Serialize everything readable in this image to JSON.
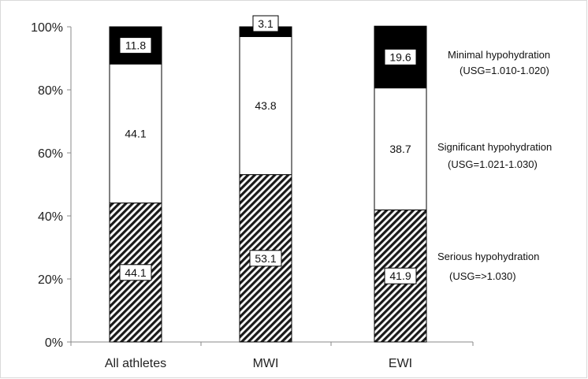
{
  "chart_data": {
    "type": "bar",
    "stacked": true,
    "categories": [
      "All athletes",
      "MWI",
      "EWI"
    ],
    "series": [
      {
        "name": "Serious hypohydration",
        "name2": "(USG=>1.030)",
        "values": [
          44.1,
          53.1,
          41.9
        ],
        "fill": "hatch"
      },
      {
        "name": "Significant hypohydration",
        "name2": "(USG=1.021-1.030)",
        "values": [
          44.1,
          43.8,
          38.7
        ],
        "fill": "#ffffff"
      },
      {
        "name": "Minimal hypohydration",
        "name2": "(USG=1.010-1.020)",
        "values": [
          11.8,
          3.1,
          19.6
        ],
        "fill": "#000000"
      }
    ],
    "data_labels": [
      [
        "44.1",
        "53.1",
        "41.9"
      ],
      [
        "44.1",
        "43.8",
        "38.7"
      ],
      [
        "11.8",
        "3.1",
        "19.6"
      ]
    ],
    "ylim": [
      0,
      100
    ],
    "yticks": [
      "0%",
      "20%",
      "40%",
      "60%",
      "80%",
      "100%"
    ],
    "legend_placement": "right",
    "grid": false
  }
}
